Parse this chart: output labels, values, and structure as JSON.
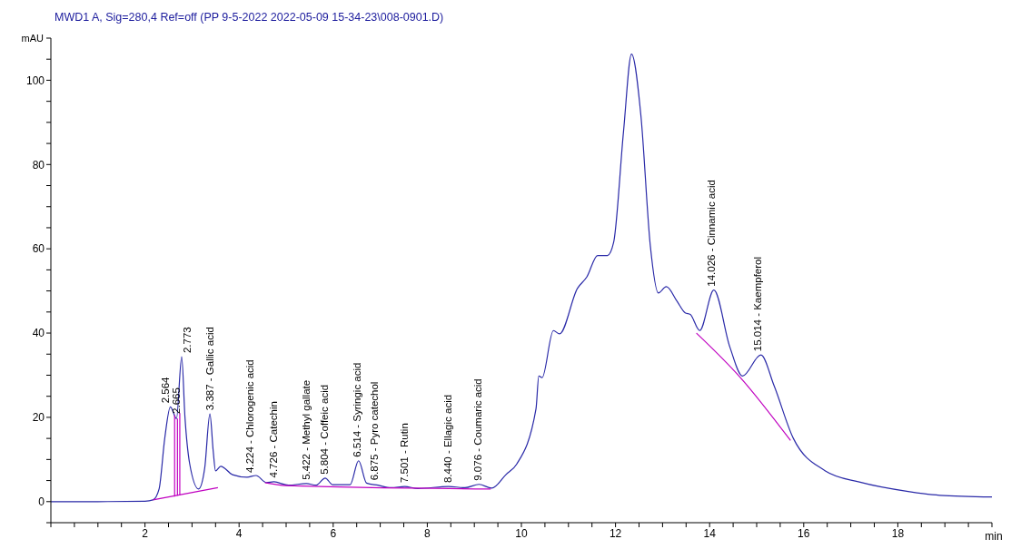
{
  "chart_data": {
    "type": "line",
    "title": "MWD1 A, Sig=280,4 Ref=off (PP 9-5-2022 2022-05-09 15-34-23\\008-0901.D)",
    "xlabel": "min",
    "ylabel": "mAU",
    "xlim": [
      0,
      20
    ],
    "ylim": [
      -5,
      110
    ],
    "xticks": [
      {
        "value": 0,
        "label": null
      },
      {
        "value": 0.5,
        "label": null
      },
      {
        "value": 1,
        "label": null
      },
      {
        "value": 1.5,
        "label": null
      },
      2,
      {
        "value": 2.5,
        "label": null
      },
      {
        "value": 3,
        "label": null
      },
      {
        "value": 3.5,
        "label": null
      },
      4,
      {
        "value": 4.5,
        "label": null
      },
      {
        "value": 5,
        "label": null
      },
      {
        "value": 5.5,
        "label": null
      },
      6,
      {
        "value": 6.5,
        "label": null
      },
      {
        "value": 7,
        "label": null
      },
      {
        "value": 7.5,
        "label": null
      },
      8,
      {
        "value": 8.5,
        "label": null
      },
      {
        "value": 9,
        "label": null
      },
      {
        "value": 9.5,
        "label": null
      },
      10,
      {
        "value": 10.5,
        "label": null
      },
      {
        "value": 11,
        "label": null
      },
      {
        "value": 11.5,
        "label": null
      },
      12,
      {
        "value": 12.5,
        "label": null
      },
      {
        "value": 13,
        "label": null
      },
      {
        "value": 13.5,
        "label": null
      },
      14,
      {
        "value": 14.5,
        "label": null
      },
      {
        "value": 15,
        "label": null
      },
      {
        "value": 15.5,
        "label": null
      },
      16,
      {
        "value": 16.5,
        "label": null
      },
      {
        "value": 17,
        "label": null
      },
      {
        "value": 17.5,
        "label": null
      },
      18,
      {
        "value": 18.5,
        "label": null
      },
      {
        "value": 19,
        "label": null
      },
      {
        "value": 19.5,
        "label": null
      },
      {
        "value": 20,
        "label": null
      }
    ],
    "yticks": [
      {
        "value": -5,
        "label": null
      },
      0,
      {
        "value": 5,
        "label": null
      },
      {
        "value": 10,
        "label": null
      },
      {
        "value": 15,
        "label": null
      },
      20,
      {
        "value": 25,
        "label": null
      },
      {
        "value": 30,
        "label": null
      },
      {
        "value": 35,
        "label": null
      },
      40,
      {
        "value": 45,
        "label": null
      },
      {
        "value": 50,
        "label": null
      },
      {
        "value": 55,
        "label": null
      },
      60,
      {
        "value": 65,
        "label": null
      },
      {
        "value": 70,
        "label": null
      },
      {
        "value": 75,
        "label": null
      },
      80,
      {
        "value": 85,
        "label": null
      },
      {
        "value": 90,
        "label": null
      },
      {
        "value": 95,
        "label": null
      },
      100,
      {
        "value": 105,
        "label": null
      },
      {
        "value": 110,
        "label": null
      }
    ],
    "grid": false,
    "marker": "none",
    "line_style": "solid",
    "series": [
      {
        "color": "#2a2aa8",
        "x": [
          0,
          1,
          2.0,
          2.17,
          2.3,
          2.42,
          2.54,
          2.67,
          2.78,
          2.85,
          2.95,
          3.14,
          3.27,
          3.38,
          3.45,
          3.5,
          3.61,
          3.86,
          4.17,
          4.36,
          4.58,
          4.74,
          5.05,
          5.43,
          5.64,
          5.83,
          5.99,
          6.36,
          6.54,
          6.71,
          6.95,
          7.23,
          7.52,
          7.8,
          8.45,
          8.8,
          9.1,
          9.37,
          9.67,
          9.9,
          10.31,
          10.37,
          10.44,
          10.68,
          10.81,
          11.19,
          11.39,
          11.62,
          11.83,
          11.96,
          12.17,
          12.34,
          12.54,
          12.74,
          12.91,
          13.08,
          13.31,
          13.48,
          13.59,
          13.79,
          14.09,
          14.43,
          14.7,
          15.09,
          15.37,
          15.78,
          16.46,
          17.2,
          18.22,
          18.89,
          20
        ],
        "values": [
          0,
          0,
          0.1,
          0.4,
          3,
          15,
          22.5,
          19.7,
          34.4,
          20,
          9,
          3,
          8,
          20.8,
          12,
          7.3,
          8.4,
          6.4,
          5.8,
          6.2,
          4.5,
          4.7,
          3.9,
          4.3,
          3.9,
          5.6,
          4,
          4,
          9.7,
          4.4,
          3.9,
          3.3,
          3.6,
          3.1,
          3.6,
          3.3,
          4.1,
          3.2,
          6.4,
          8.9,
          22,
          29.8,
          29.4,
          40.6,
          39.8,
          50.6,
          53.3,
          58.4,
          58.4,
          61.5,
          87.8,
          106.2,
          91.6,
          60.7,
          49.5,
          51,
          47.5,
          44.8,
          44.4,
          40.6,
          50.2,
          36.7,
          29.8,
          34.8,
          27.5,
          15,
          7.3,
          4.6,
          2.4,
          1.5,
          1.1
        ]
      },
      {
        "color": "#c000c0",
        "x": [
          2.17,
          3.55
        ],
        "values": [
          0.4,
          3.3
        ]
      },
      {
        "color": "#c000c0",
        "x": [
          2.63,
          2.63
        ],
        "values": [
          1.2,
          20.5
        ]
      },
      {
        "color": "#c000c0",
        "x": [
          2.69,
          2.69
        ],
        "values": [
          1.4,
          19.7
        ]
      },
      {
        "color": "#c000c0",
        "x": [
          2.74,
          2.74
        ],
        "values": [
          1.5,
          21
        ]
      },
      {
        "color": "#c000c0",
        "x": [
          4.55,
          5.0,
          9.35
        ],
        "values": [
          4.5,
          3.8,
          3.0
        ]
      },
      {
        "color": "#c000c0",
        "x": [
          13.72,
          14.65,
          15.72
        ],
        "values": [
          40.0,
          29.5,
          14.5
        ]
      }
    ],
    "annotations": [
      {
        "text": "2.564",
        "x": 2.564,
        "y": 22.5
      },
      {
        "text": "2.665",
        "x": 2.665,
        "y": 20
      },
      {
        "text": "2.773",
        "x": 2.773,
        "y": 34.4
      },
      {
        "text": "3.387 -  Gallic acid",
        "x": 3.387,
        "y": 20.8
      },
      {
        "text": "4.224 -  Chlorogenic acid",
        "x": 4.224,
        "y": 6
      },
      {
        "text": "4.726 -  Catechin",
        "x": 4.726,
        "y": 4.8
      },
      {
        "text": "5.422 -  Methyl gallate",
        "x": 5.422,
        "y": 4.3
      },
      {
        "text": "5.804 -  Coffeic acid",
        "x": 5.804,
        "y": 5.6
      },
      {
        "text": "6.514 -  Syringic acid",
        "x": 6.514,
        "y": 9.7
      },
      {
        "text": "6.875 -  Pyro catechol",
        "x": 6.875,
        "y": 4.2
      },
      {
        "text": "7.501 -  Rutin",
        "x": 7.501,
        "y": 3.6
      },
      {
        "text": "8.440 -  Ellagic acid",
        "x": 8.44,
        "y": 3.6
      },
      {
        "text": "9.076 -  Coumaric acid",
        "x": 9.076,
        "y": 4.1
      },
      {
        "text": "14.026 -  Cinnamic acid",
        "x": 14.026,
        "y": 50.2
      },
      {
        "text": "15.014 -  Kaempferol",
        "x": 15.014,
        "y": 34.8
      }
    ]
  }
}
